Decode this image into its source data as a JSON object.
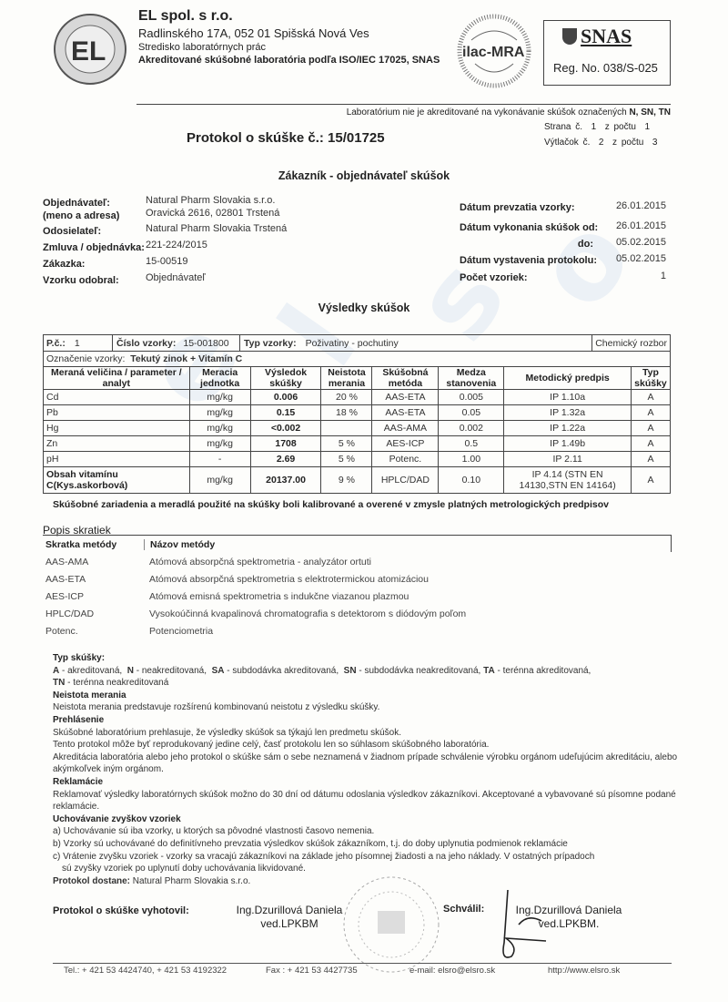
{
  "header": {
    "logo_text": "Ekologické laboratória EL Spišská Nová Ves",
    "company": "EL spol. s r.o.",
    "address": "Radlinského 17A, 052 01 Spišská Nová Ves",
    "division": "Stredisko laboratórnych prác",
    "accreditation": "Akreditované skúšobné laboratória podľa  ISO/IEC 17025, SNAS",
    "ilac_logo": "ilac-MRA",
    "snas_label": "SNAS",
    "snas_reg": "Reg. No. 038/S-025",
    "not_accredited_note": "Laboratórium nie je akreditované na vykonávanie skúšok označených",
    "not_accredited_codes": "N, SN, TN"
  },
  "protocol": {
    "title": "Protokol  o  skúške č.: 15/01725",
    "page_label": "Strana  č.",
    "page_no": "1",
    "page_of_label": "z počtu",
    "page_total": "1",
    "copy_label": "Výtlačok č.",
    "copy_no": "2",
    "copy_of_label": "z počtu",
    "copy_total": "3"
  },
  "customer": {
    "heading": "Zákazník - objednávateľ skúšok",
    "left": [
      {
        "label": "Objednávateľ:",
        "value": "Natural Pharm Slovakia s.r.o."
      },
      {
        "label": "(meno a adresa)",
        "value": "Oravická 2616, 02801 Trstená"
      },
      {
        "label": "Odosielateľ:",
        "value": "Natural Pharm Slovakia Trstená"
      },
      {
        "label": "Zmluva / objednávka:",
        "value": "221-224/2015"
      },
      {
        "label": "Zákazka:",
        "value": "15-00519"
      },
      {
        "label": "Vzorku odobral:",
        "value": "Objednávateľ"
      }
    ],
    "right": [
      {
        "label": "Dátum prevzatia vzorky:",
        "value": "26.01.2015"
      },
      {
        "label": "Dátum vykonania skúšok od:",
        "value": "26.01.2015"
      },
      {
        "label": "do:",
        "value": "05.02.2015"
      },
      {
        "label": "Dátum vystavenia protokolu:",
        "value": "05.02.2015"
      },
      {
        "label": "Počet vzoriek:",
        "value": "1"
      }
    ]
  },
  "results": {
    "heading": "Výsledky skúšok",
    "pc_label": "P.č.:",
    "pc_value": "1",
    "sample_no_label": "Číslo vzorky:",
    "sample_no": "15-001800",
    "sample_type_label": "Typ vzorky:",
    "sample_type": "Poživatiny - pochutiny",
    "analysis": "Chemický rozbor",
    "designation_label": "Označenie vzorky:",
    "designation": "Tekutý zinok + Vitamín C",
    "columns": [
      "Meraná veličina / parameter / analyt",
      "Meracia jednotka",
      "Výsledok skúšky",
      "Neistota merania",
      "Skúšobná metóda",
      "Medza stanovenia",
      "Metodický predpis",
      "Typ skúšky"
    ],
    "rows": [
      [
        "Cd",
        "mg/kg",
        "0.006",
        "20 %",
        "AAS-ETA",
        "0.005",
        "IP 1.10a",
        "A"
      ],
      [
        "Pb",
        "mg/kg",
        "0.15",
        "18 %",
        "AAS-ETA",
        "0.05",
        "IP 1.32a",
        "A"
      ],
      [
        "Hg",
        "mg/kg",
        "<0.002",
        "",
        "AAS-AMA",
        "0.002",
        "IP 1.22a",
        "A"
      ],
      [
        "Zn",
        "mg/kg",
        "1708",
        "5 %",
        "AES-ICP",
        "0.5",
        "IP 1.49b",
        "A"
      ],
      [
        "pH",
        "-",
        "2.69",
        "5 %",
        "Potenc.",
        "1.00",
        "IP 2.11",
        "A"
      ],
      [
        "Obsah vitamínu C(Kys.askorbová)",
        "mg/kg",
        "20137.00",
        "9 %",
        "HPLC/DAD",
        "0.10",
        "IP 4.14 (STN EN 14130,STN EN 14164)",
        "A"
      ]
    ],
    "calibration_note": "Skúšobné zariadenia a meradlá použité na skúšky boli kalibrované a overené v zmysle platných metrologických predpisov"
  },
  "abbreviations": {
    "heading": "Popis skratiek",
    "col_code": "Skratka metódy",
    "col_name": "Názov metódy",
    "items": [
      {
        "code": "AAS-AMA",
        "name": "Atómová absorpčná spektrometria - analyzátor ortuti"
      },
      {
        "code": "AAS-ETA",
        "name": "Atómová absorpčná spektrometria s elektrotermickou atomizáciou"
      },
      {
        "code": "AES-ICP",
        "name": "Atómová emisná spektrometria s indukčne viazanou plazmou"
      },
      {
        "code": "HPLC/DAD",
        "name": "Vysokoúčinná kvapalinová chromatografia s detektorom s diódovým poľom"
      },
      {
        "code": "Potenc.",
        "name": "Potenciometria"
      }
    ]
  },
  "notes": {
    "type_heading": "Typ skúšky:",
    "types": [
      {
        "code": "A",
        "text": " - akreditovaná,  "
      },
      {
        "code": "N",
        "text": " - neakreditovaná,  "
      },
      {
        "code": "SA",
        "text": " - subdodávka akreditovaná,  "
      },
      {
        "code": "SN",
        "text": " - subdodávka neakreditovaná, "
      },
      {
        "code": "TA",
        "text": " - terénna akreditovaná,"
      },
      {
        "code": "TN",
        "text": " - terénna neakreditovaná"
      }
    ],
    "uncertainty_heading": "Neistota merania",
    "uncertainty_text": "Neistota merania predstavuje rozšírenú kombinovanú neistotu z výsledku skúšky.",
    "declaration_heading": "Prehlásenie",
    "declaration": [
      "Skúšobné laboratórium prehlasuje, že výsledky skúšok sa týkajú len predmetu skúšok.",
      "Tento protokol môže byť reprodukovaný jedine celý, časť protokolu len so súhlasom skúšobného laboratória.",
      "Akreditácia laboratória alebo jeho protokol o skúške sám o sebe neznamená v žiadnom prípade schválenie výrobku orgánom udeľujúcim akreditáciu, alebo akýmkoľvek iným orgánom."
    ],
    "complaints_heading": "Reklamácie",
    "complaints_text": "Reklamovať výsledky laboratórnych skúšok možno do 30 dní od dátumu odoslania výsledkov zákazníkovi. Akceptované a vybavované sú písomne podané reklamácie.",
    "storage_heading": "Uchovávanie zvyškov vzoriek",
    "storage": [
      "a) Uchovávanie sú iba vzorky, u ktorých sa pôvodné vlastnosti časovo nemenia.",
      "b) Vzorky sú uchovávané do definitívneho prevzatia výsledkov skúšok zákazníkom,  t.j. do doby uplynutia podmienok reklamácie",
      "c) Vrátenie zvyšku vzoriek - vzorky sa vracajú zákazníkovi na základe jeho písomnej  žiadosti a na jeho náklady. V ostatných prípadoch",
      "sú zvyšky vzoriek po uplynutí doby uchovávania likvidované."
    ],
    "recipient_label": "Protokol dostane:",
    "recipient": "Natural Pharm Slovakia s.r.o."
  },
  "signatures": {
    "prepared_label": "Protokol o skúške vyhotovil:",
    "prepared_name": "Ing.Dzurillová Daniela",
    "prepared_title": "ved.LPKBM",
    "approved_label": "Schválil:",
    "approved_name": "Ing.Dzurillová Daniela",
    "approved_title": "ved.LPKBM."
  },
  "footer": {
    "tel": "Tel.:  + 421 53 4424740,  + 421 53 4192322",
    "fax": "Fax : + 421 53 4427735",
    "email": "e-mail: elsro@elsro.sk",
    "web": "http://www.elsro.sk"
  },
  "colors": {
    "watermark": "#78a0d7",
    "text": "#222222",
    "stamp": "#9a9a9a"
  }
}
